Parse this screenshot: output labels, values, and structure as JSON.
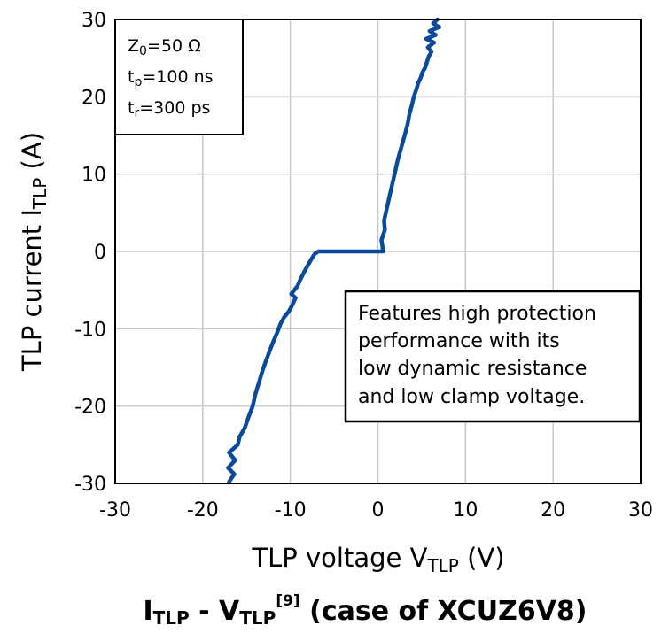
{
  "chart_data": {
    "type": "line",
    "title": "",
    "caption": {
      "main": "I",
      "main_sub": "TLP",
      "dash": " - V",
      "v_sub": "TLP",
      "ref": "[9]",
      "rest": " (case of XCUZ6V8)"
    },
    "xlabel": {
      "prefix": "TLP voltage V",
      "sub": "TLP",
      "suffix": " (V)"
    },
    "ylabel": {
      "prefix": "TLP current I",
      "sub": "TLP",
      "suffix": " (A)"
    },
    "xlim": [
      -30,
      30
    ],
    "ylim": [
      -30,
      30
    ],
    "xticks": [
      -30,
      -20,
      -10,
      0,
      10,
      20,
      30
    ],
    "yticks": [
      -30,
      -20,
      -10,
      0,
      10,
      20,
      30
    ],
    "grid": true,
    "series": [
      {
        "color": "#0a4a9c",
        "x": [
          -17.0,
          -16.4,
          -17.1,
          -16.3,
          -17.0,
          -16.0,
          -15.8,
          -15.2,
          -14.8,
          -14.3,
          -14.0,
          -13.6,
          -13.2,
          -12.8,
          -12.4,
          -12.0,
          -11.5,
          -11.1,
          -10.7,
          -10.2,
          -9.8,
          -9.4,
          -9.9,
          -9.2,
          -8.8,
          -8.4,
          -8.0,
          -7.6,
          -7.2,
          -6.8,
          -6.4,
          -5.9,
          -3.0,
          0.0,
          0.6,
          0.4,
          0.8,
          0.7,
          1.0,
          1.3,
          1.6,
          1.9,
          2.2,
          2.5,
          2.8,
          3.1,
          3.4,
          3.6,
          3.9,
          4.1,
          4.4,
          4.6,
          4.9,
          5.1,
          5.4,
          5.6,
          5.8,
          6.1,
          5.7,
          6.4,
          5.5,
          6.6,
          5.9,
          7.0,
          6.3,
          6.8
        ],
        "y": [
          -29.8,
          -28.8,
          -28.0,
          -27.0,
          -26.0,
          -25.0,
          -24.0,
          -22.8,
          -21.5,
          -20.0,
          -18.5,
          -17.0,
          -15.5,
          -14.2,
          -13.0,
          -11.8,
          -10.5,
          -9.3,
          -8.5,
          -7.8,
          -7.0,
          -6.0,
          -5.5,
          -4.5,
          -3.5,
          -2.6,
          -1.8,
          -1.0,
          -0.3,
          0.0,
          0.0,
          0.0,
          0.0,
          0.0,
          0.0,
          1.5,
          2.8,
          4.0,
          5.5,
          7.0,
          8.5,
          10.0,
          11.5,
          12.8,
          14.0,
          15.2,
          16.5,
          17.8,
          19.0,
          20.0,
          21.0,
          21.8,
          22.5,
          23.2,
          23.8,
          24.5,
          25.2,
          25.8,
          26.4,
          27.0,
          27.5,
          28.0,
          28.5,
          29.0,
          29.5,
          30.0
        ]
      }
    ],
    "params": [
      {
        "sym": "Z",
        "sub": "0",
        "val": "=50 Ω"
      },
      {
        "sym": "t",
        "sub": "p",
        "val": "=100 ns"
      },
      {
        "sym": "t",
        "sub": "r",
        "val": "=300 ps"
      }
    ],
    "annotation": [
      "Features high protection",
      "performance with its",
      "low dynamic resistance",
      "and low clamp voltage."
    ]
  }
}
